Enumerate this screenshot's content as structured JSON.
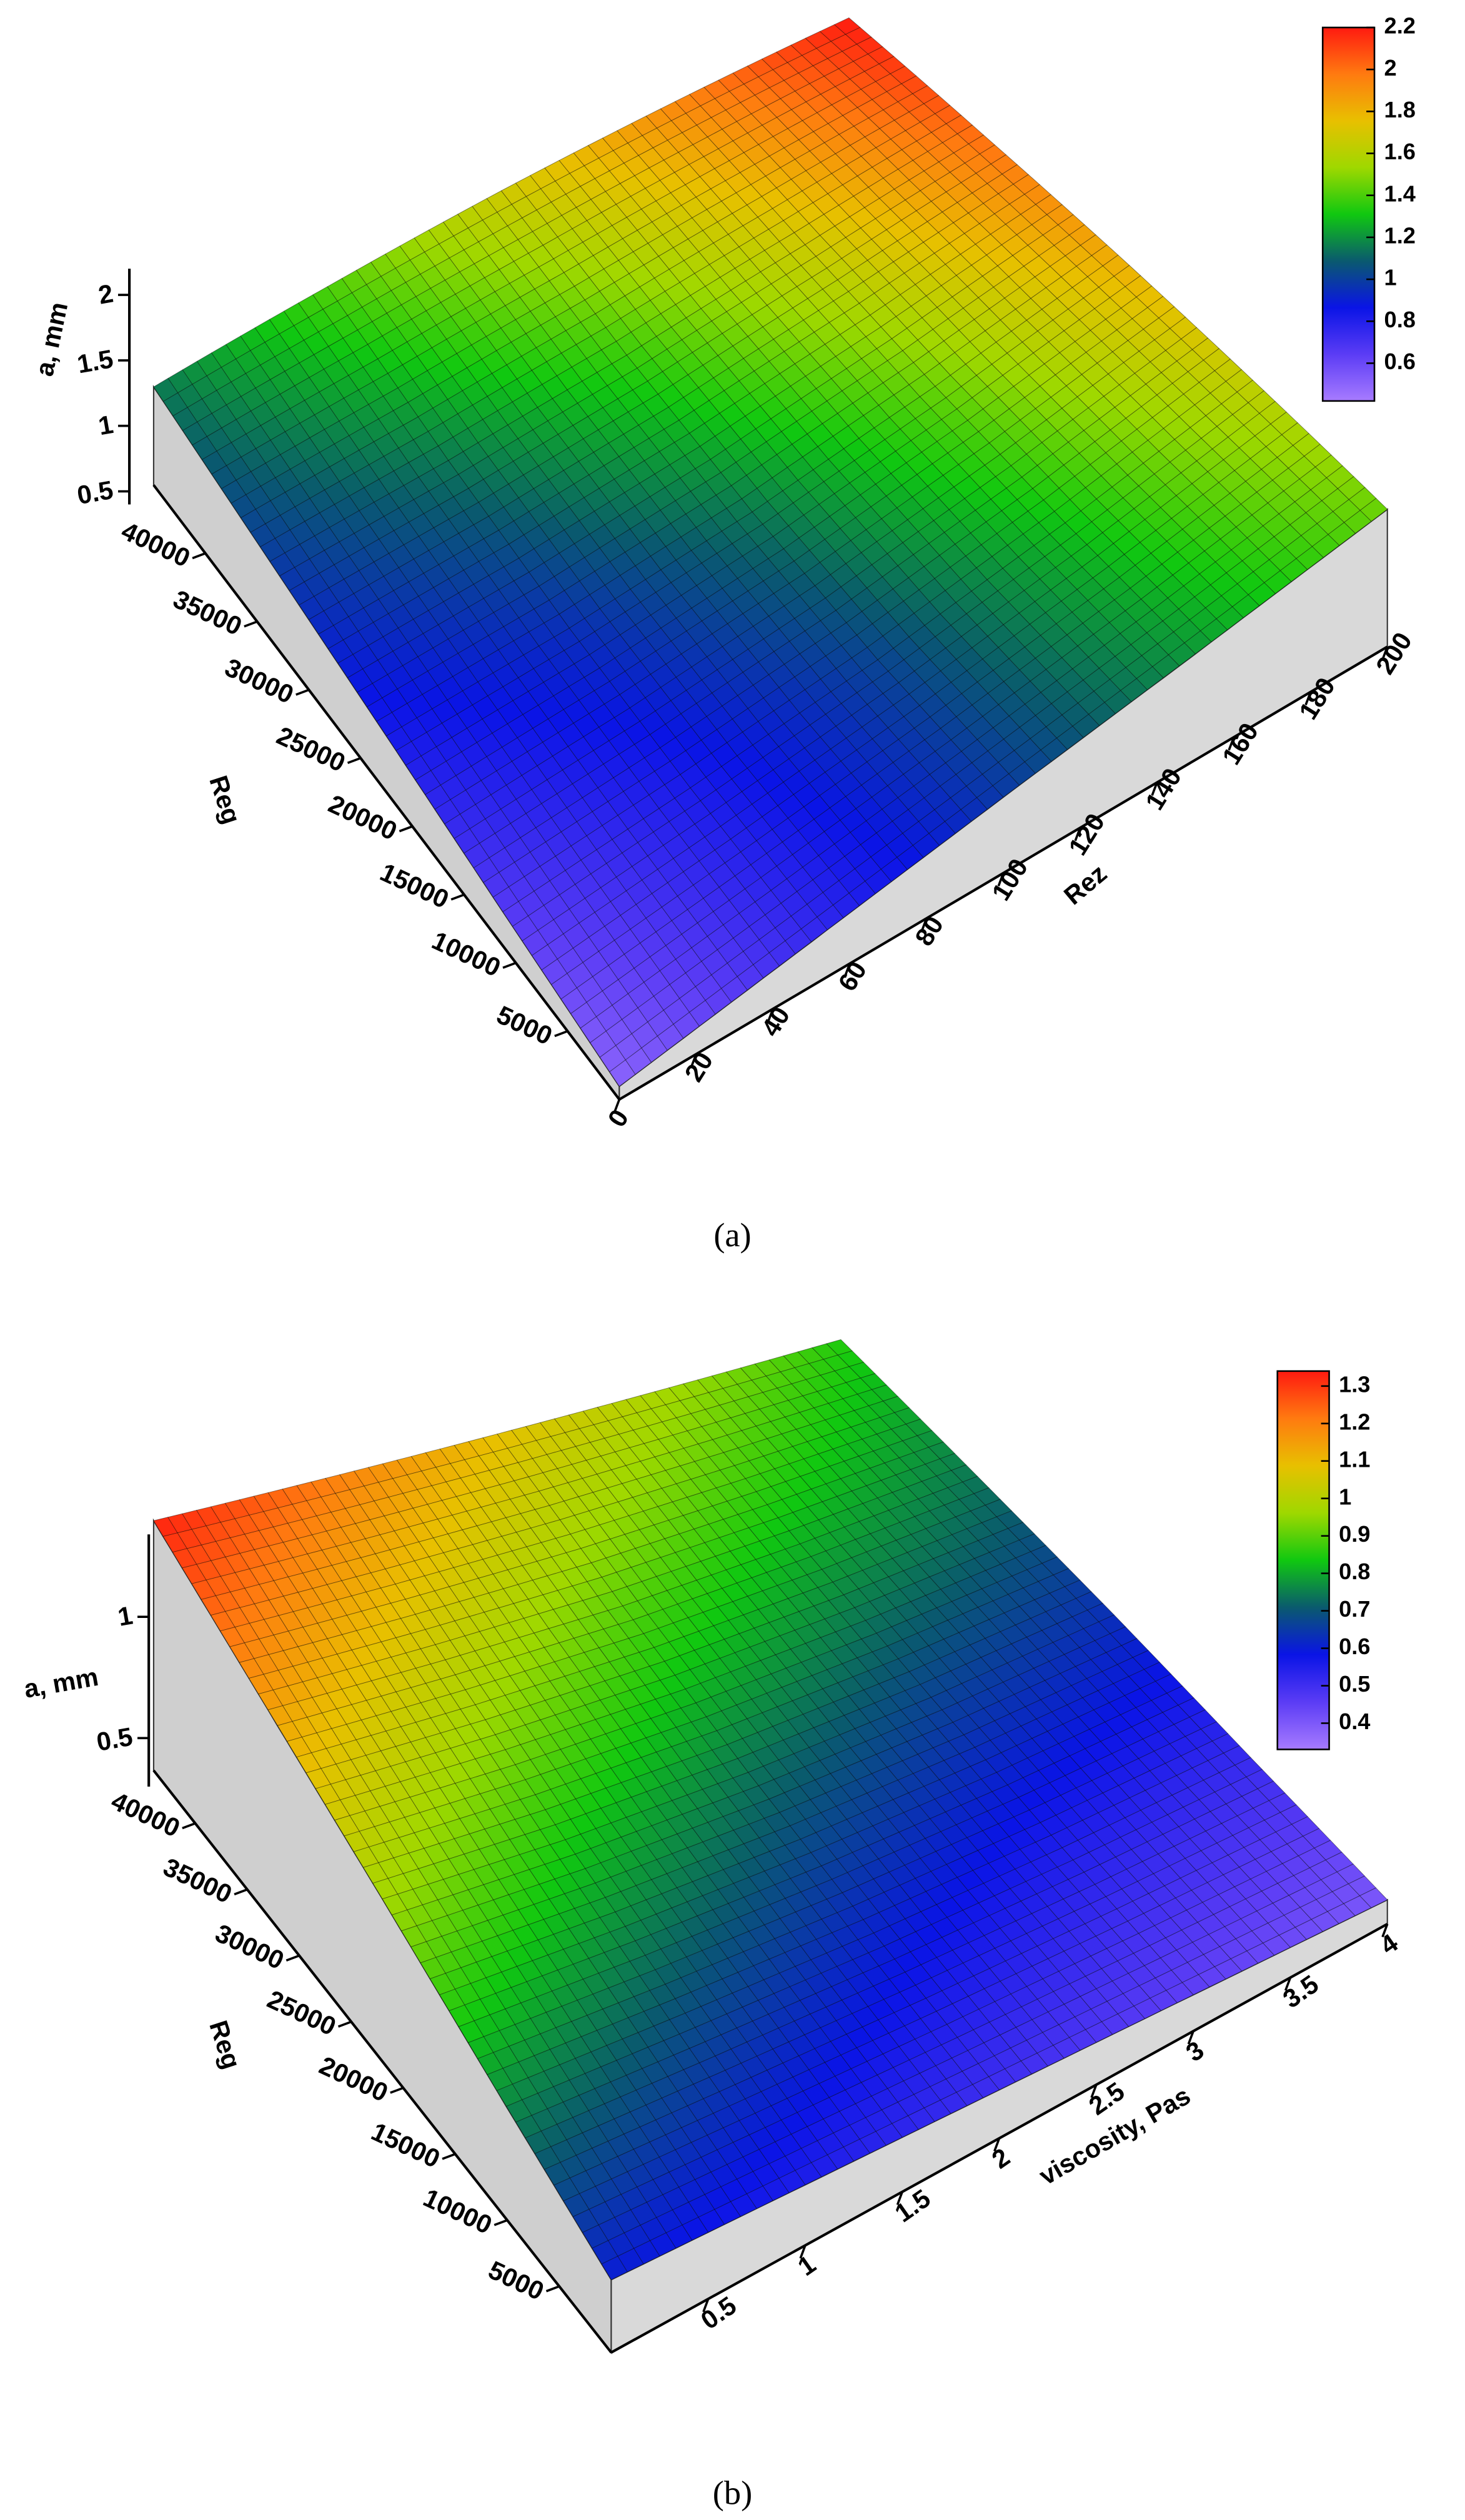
{
  "chart_data": [
    {
      "type": "surface",
      "caption": "(a)",
      "xlabel": "Rez",
      "ylabel": "Reg",
      "zlabel": "a, mm",
      "x": [
        0,
        50,
        100,
        150,
        200
      ],
      "y": [
        0,
        11250,
        22500,
        33750,
        45000
      ],
      "z": [
        [
          0.5,
          0.74,
          0.98,
          1.21,
          1.45
        ],
        [
          0.66,
          0.82,
          1.02,
          1.3,
          1.64
        ],
        [
          0.83,
          0.95,
          1.15,
          1.45,
          1.83
        ],
        [
          0.99,
          1.15,
          1.37,
          1.67,
          2.01
        ],
        [
          1.15,
          1.41,
          1.68,
          1.94,
          2.2
        ]
      ],
      "xlim": [
        0,
        200
      ],
      "ylim": [
        0,
        45000
      ],
      "zlim": [
        0.4,
        2.2
      ],
      "xticks": [
        0,
        20,
        40,
        60,
        80,
        100,
        120,
        140,
        160,
        180,
        200
      ],
      "yticks": [
        5000,
        10000,
        15000,
        20000,
        25000,
        30000,
        35000,
        40000
      ],
      "zticks": [
        0.5,
        1,
        1.5,
        2
      ],
      "clim": [
        0.42,
        2.2
      ],
      "cticks": [
        0.6,
        0.8,
        1,
        1.2,
        1.4,
        1.6,
        1.8,
        2,
        2.2
      ],
      "colormap": [
        "#a77bff",
        "#5b3cf5",
        "#0a14e6",
        "#0a5a6e",
        "#10c810",
        "#9fd800",
        "#e8c000",
        "#ff7a10",
        "#ff1a10"
      ]
    },
    {
      "type": "surface",
      "caption": "(b)",
      "xlabel": "viscosity, Pas",
      "ylabel": "Reg",
      "zlabel": "a, mm",
      "x": [
        0,
        1,
        2,
        3,
        4
      ],
      "y": [
        0,
        11000,
        22000,
        33000,
        44000
      ],
      "z": [
        [
          0.6,
          0.55,
          0.5,
          0.45,
          0.4
        ],
        [
          0.78,
          0.69,
          0.61,
          0.55,
          0.51
        ],
        [
          0.97,
          0.84,
          0.74,
          0.67,
          0.63
        ],
        [
          1.15,
          1.02,
          0.9,
          0.81,
          0.74
        ],
        [
          1.33,
          1.21,
          1.09,
          0.97,
          0.85
        ]
      ],
      "xlim": [
        0,
        4
      ],
      "ylim": [
        0,
        44000
      ],
      "zlim": [
        0.3,
        1.34
      ],
      "xticks": [
        0.5,
        1,
        1.5,
        2,
        2.5,
        3,
        3.5,
        4
      ],
      "yticks": [
        5000,
        10000,
        15000,
        20000,
        25000,
        30000,
        35000,
        40000
      ],
      "zticks": [
        0.5,
        1
      ],
      "clim": [
        0.33,
        1.34
      ],
      "cticks": [
        0.4,
        0.5,
        0.6,
        0.7,
        0.8,
        0.9,
        1,
        1.1,
        1.2,
        1.3
      ],
      "colormap": [
        "#a77bff",
        "#5b3cf5",
        "#0a14e6",
        "#0a5a6e",
        "#10c810",
        "#9fd800",
        "#e8c000",
        "#ff7a10",
        "#ff1a10"
      ]
    }
  ]
}
